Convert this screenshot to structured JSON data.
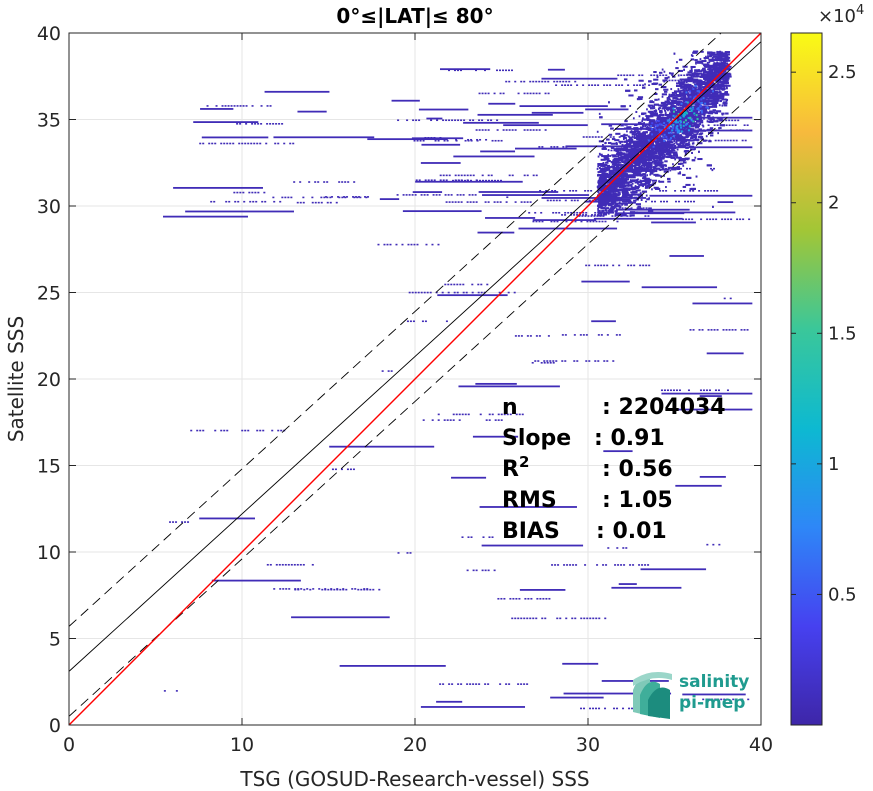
{
  "chart_data": {
    "type": "heatmap",
    "title": "0°≤|LAT|≤ 80°",
    "xlabel": "TSG (GOSUD-Research-vessel) SSS",
    "ylabel": "Satellite SSS",
    "xlim": [
      0,
      40
    ],
    "ylim": [
      0,
      40
    ],
    "xticks": [
      "0",
      "10",
      "20",
      "30",
      "40"
    ],
    "yticks": [
      "0",
      "5",
      "10",
      "15",
      "20",
      "25",
      "30",
      "35",
      "40"
    ],
    "grid": true,
    "colorbar": {
      "exponent_label": "×10",
      "exponent_power": "4",
      "ticks": [
        "0.5",
        "1",
        "1.5",
        "2",
        "2.5"
      ],
      "tick_values": [
        0.5,
        1.0,
        1.5,
        2.0,
        2.5
      ],
      "range": [
        0,
        2.65
      ],
      "colormap": [
        "#3e26a8",
        "#4641f0",
        "#2e87f7",
        "#0db9d1",
        "#3ac79a",
        "#a2c636",
        "#f7ba3d",
        "#f9fb15"
      ]
    },
    "reference_lines": {
      "identity": {
        "slope": 1.0,
        "intercept": 0.0,
        "color": "#ff0000"
      },
      "fit": {
        "slope": 0.91,
        "intercept": 3.1,
        "color": "#000000"
      },
      "fit_plus": {
        "slope": 0.91,
        "intercept": 5.7,
        "color": "#000000",
        "style": "dashed"
      },
      "fit_minus": {
        "slope": 0.91,
        "intercept": 0.5,
        "color": "#000000",
        "style": "dashed"
      }
    },
    "density_core": [
      {
        "x": 35.5,
        "y": 35.3,
        "value": 1.5
      },
      {
        "x": 35.0,
        "y": 34.8,
        "value": 1.0
      },
      {
        "x": 34.2,
        "y": 34.3,
        "value": 0.6
      },
      {
        "x": 36.3,
        "y": 36.2,
        "value": 0.7
      }
    ],
    "stats": [
      {
        "label": "n",
        "value": ": 2204034"
      },
      {
        "label": "Slope",
        "value": ": 0.91"
      },
      {
        "label": "R",
        "sup": "2",
        "value": ": 0.56"
      },
      {
        "label": "RMS",
        "value": ": 1.05"
      },
      {
        "label": "BIAS",
        "value": ": 0.01"
      }
    ],
    "logo": {
      "line1": "salinity",
      "line2": "pi-mep"
    }
  }
}
